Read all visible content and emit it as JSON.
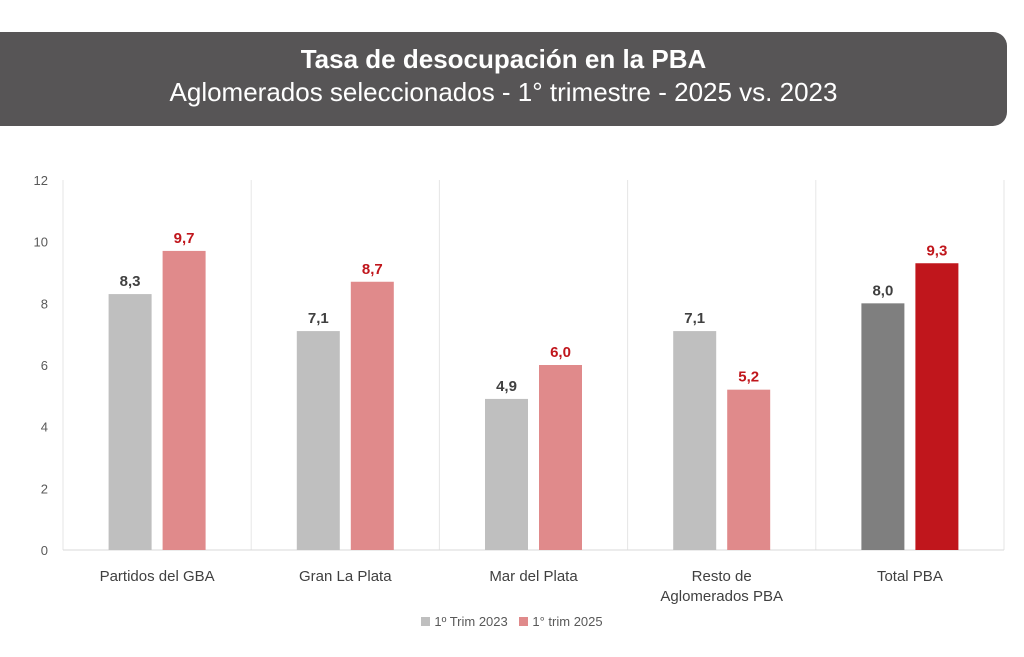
{
  "banner": {
    "title": "Tasa de desocupación en la PBA",
    "subtitle": "Aglomerados seleccionados - 1° trimestre - 2025 vs. 2023"
  },
  "legend": {
    "items": [
      {
        "label": "1º Trim 2023",
        "color": "#bfbfbf"
      },
      {
        "label": "1° trim 2025",
        "color": "#e08a8b"
      }
    ]
  },
  "chart_data": {
    "type": "bar",
    "categories": [
      [
        "Partidos del GBA"
      ],
      [
        "Gran La Plata"
      ],
      [
        "Mar del Plata"
      ],
      [
        "Resto de",
        "Aglomerados PBA"
      ],
      [
        "Total PBA"
      ]
    ],
    "series": [
      {
        "name": "1º Trim 2023",
        "values": [
          8.3,
          7.1,
          4.9,
          7.1,
          8.0
        ],
        "labels": [
          "8,3",
          "7,1",
          "4,9",
          "7,1",
          "8,0"
        ],
        "color": "#bfbfbf",
        "last_color": "#7f7f7f",
        "label_color": "#404040"
      },
      {
        "name": "1° trim 2025",
        "values": [
          9.7,
          8.7,
          6.0,
          5.2,
          9.3
        ],
        "labels": [
          "9,7",
          "8,7",
          "6,0",
          "5,2",
          "9,3"
        ],
        "color": "#e08a8b",
        "last_color": "#c0161c",
        "label_color": "#c0161c"
      }
    ],
    "ylim": [
      0,
      12
    ],
    "yticks": [
      0,
      2,
      4,
      6,
      8,
      10,
      12
    ],
    "grid": "vertical-separators",
    "legend_position": "bottom"
  }
}
